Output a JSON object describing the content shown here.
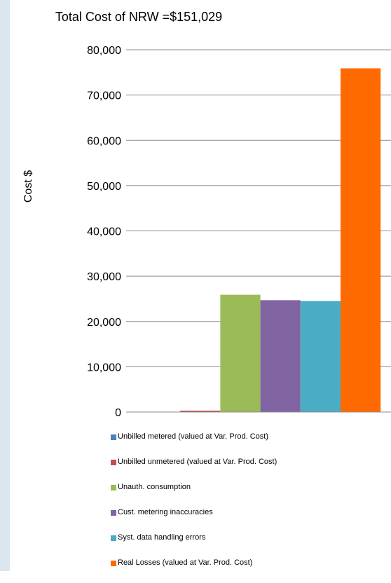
{
  "chart_data": {
    "type": "bar",
    "title": "Total Cost of NRW =$151,029",
    "xlabel": "",
    "ylabel": "Cost $",
    "ylim": [
      0,
      80000
    ],
    "yticks": [
      0,
      10000,
      20000,
      30000,
      40000,
      50000,
      60000,
      70000,
      80000
    ],
    "ytick_labels": [
      "0",
      "10,000",
      "20,000",
      "30,000",
      "40,000",
      "50,000",
      "60,000",
      "70,000",
      "80,000"
    ],
    "grid": true,
    "legend_position": "bottom",
    "series": [
      {
        "name": "Unbilled metered (valued at Var. Prod. Cost)",
        "value": 0,
        "color": "#4f81bd"
      },
      {
        "name": "Unbilled unmetered (valued at Var. Prod. Cost)",
        "value": 300,
        "color": "#c0504d"
      },
      {
        "name": "Unauth. consumption",
        "value": 25900,
        "color": "#9bbb59"
      },
      {
        "name": "Cust. metering inaccuracies",
        "value": 24700,
        "color": "#8064a2"
      },
      {
        "name": "Syst. data handling errors",
        "value": 24500,
        "color": "#4bacc6"
      },
      {
        "name": "Real Losses (valued at Var. Prod. Cost)",
        "value": 75900,
        "color": "#ff6a00"
      }
    ]
  }
}
